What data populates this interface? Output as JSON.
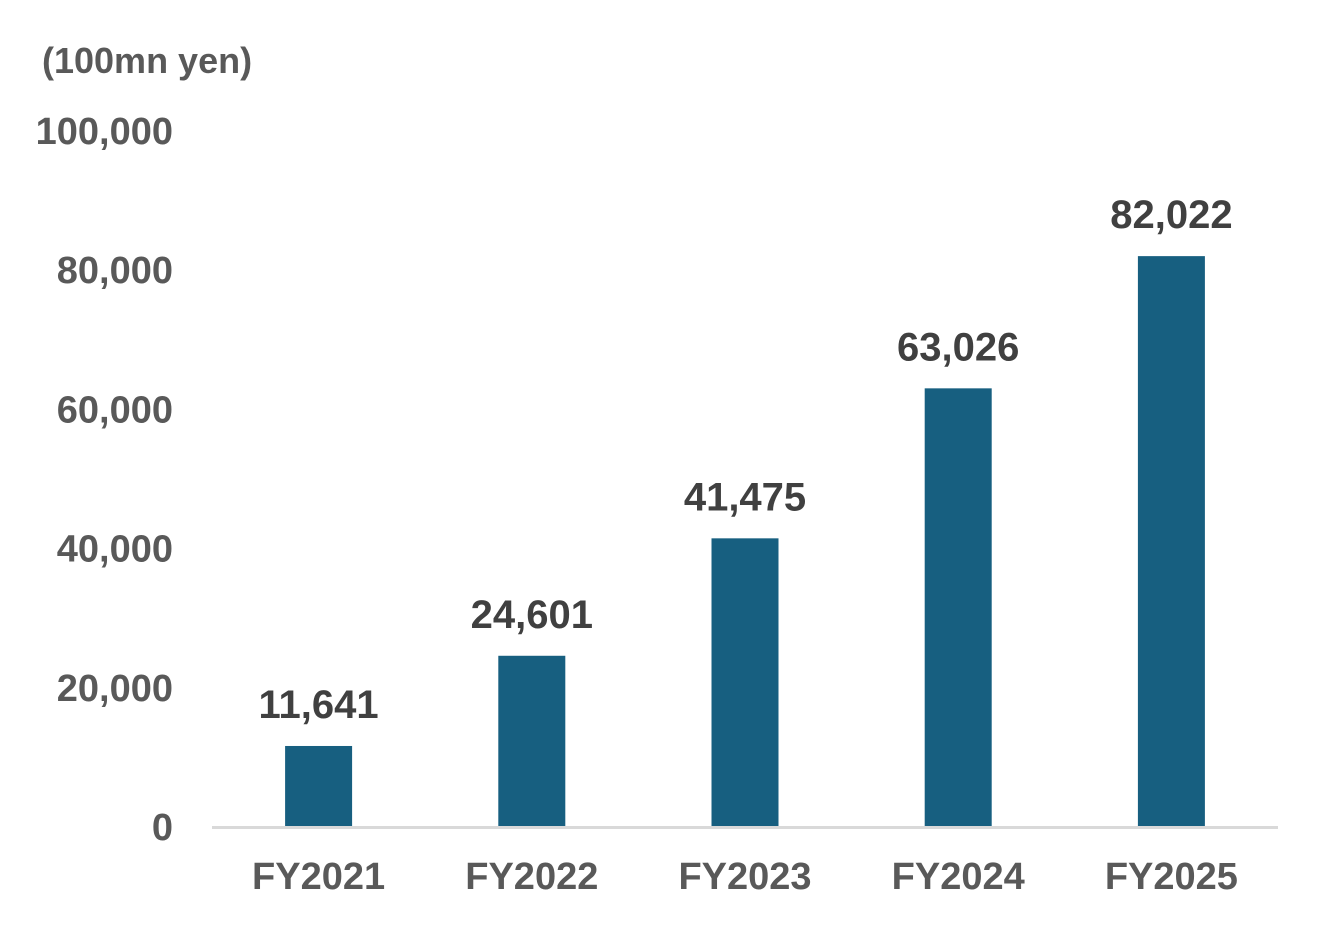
{
  "chart_data": {
    "type": "bar",
    "unit_label": "(100mn yen)",
    "categories": [
      "FY2021",
      "FY2022",
      "FY2023",
      "FY2024",
      "FY2025"
    ],
    "values": [
      11641,
      24601,
      41475,
      63026,
      82022
    ],
    "value_labels": [
      "11,641",
      "24,601",
      "41,475",
      "63,026",
      "82,022"
    ],
    "ylim": [
      0,
      100000
    ],
    "yticks": [
      0,
      20000,
      40000,
      60000,
      80000,
      100000
    ],
    "ytick_labels": [
      "0",
      "20,000",
      "40,000",
      "60,000",
      "80,000",
      "100,000"
    ],
    "grid": false,
    "bar_color": "#175f80",
    "axis_color": "#d9d9d9"
  }
}
